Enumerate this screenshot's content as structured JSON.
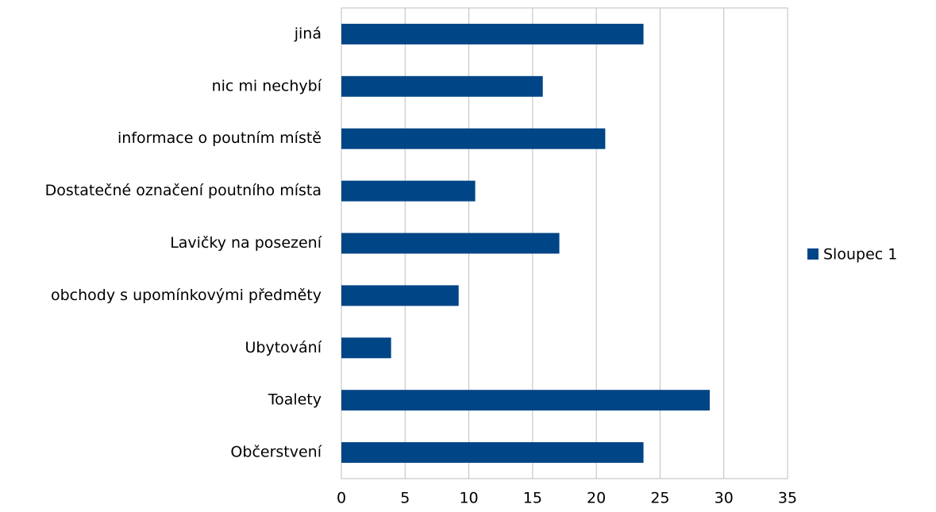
{
  "chart_data": {
    "type": "bar",
    "orientation": "horizontal",
    "categories": [
      "jiná",
      "nic mi nechybí",
      "informace o poutním místě",
      "Dostatečné označení poutního místa",
      "Lavičky na posezení",
      "obchody s upomínkovými předměty",
      "Ubytování",
      "Toalety",
      "Občerstvení"
    ],
    "series": [
      {
        "name": "Sloupec 1",
        "color": "#004586",
        "values": [
          23.7,
          15.8,
          20.7,
          10.5,
          17.1,
          9.2,
          3.9,
          28.9,
          23.7
        ]
      }
    ],
    "xlim": [
      0,
      35
    ],
    "xticks": [
      0,
      5,
      10,
      15,
      20,
      25,
      30,
      35
    ],
    "grid": true,
    "legend": "right"
  }
}
